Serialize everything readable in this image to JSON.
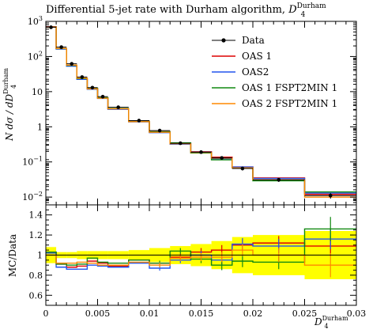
{
  "chart_data": {
    "type": "line",
    "title": "Differential 5-jet rate with Durham algorithm, ",
    "title_symbol": "D",
    "title_sub": "4",
    "title_sup": "Durham",
    "xlabel": "D",
    "xlabel_sub": "4",
    "xlabel_sup": "Durham",
    "ylabel_top": "N dσ / dD",
    "ylabel_top_sub": "4",
    "ylabel_top_sup": "Durham",
    "ylabel_bottom": "MC/Data",
    "xlim": [
      0,
      0.03
    ],
    "ylim_top": [
      0.006,
      1000
    ],
    "yscale_top": "log",
    "ylim_bottom": [
      0.5,
      1.5
    ],
    "x_ticks": [
      0,
      0.005,
      0.01,
      0.015,
      0.02,
      0.025,
      0.03
    ],
    "x_tick_labels": [
      "0",
      "0.005",
      "0.01",
      "0.015",
      "0.02",
      "0.025",
      "0.03"
    ],
    "y_top_ticks": [
      0.01,
      0.1,
      1,
      10,
      100,
      1000
    ],
    "y_top_tick_labels": [
      {
        "base": "10",
        "exp": "−2"
      },
      {
        "base": "10",
        "exp": "−1"
      },
      {
        "base": "1",
        "exp": ""
      },
      {
        "base": "10",
        "exp": ""
      },
      {
        "base": "10",
        "exp": "2"
      },
      {
        "base": "10",
        "exp": "3"
      }
    ],
    "y_bottom_ticks": [
      0.6,
      0.8,
      1.0,
      1.2,
      1.4
    ],
    "y_bottom_tick_labels": [
      "0.6",
      "0.8",
      "1",
      "1.2",
      "1.4"
    ],
    "legend_position": "top-right",
    "bin_edges": [
      0,
      0.001,
      0.002,
      0.003,
      0.004,
      0.005,
      0.006,
      0.008,
      0.01,
      0.012,
      0.014,
      0.016,
      0.018,
      0.02,
      0.025,
      0.03
    ],
    "data": {
      "name": "Data",
      "color": "#000000",
      "values": [
        680,
        185,
        62,
        26,
        13,
        7.2,
        3.6,
        1.5,
        0.78,
        0.34,
        0.19,
        0.13,
        0.065,
        0.031,
        0.011
      ],
      "errors": [
        50,
        10,
        4,
        2,
        1,
        0.5,
        0.25,
        0.1,
        0.06,
        0.03,
        0.02,
        0.015,
        0.008,
        0.004,
        0.002
      ]
    },
    "series": [
      {
        "name": "OAS 1",
        "color": "#dd0000",
        "values": [
          700,
          168,
          55,
          23,
          12.2,
          6.6,
          3.2,
          1.42,
          0.72,
          0.33,
          0.195,
          0.137,
          0.072,
          0.035,
          0.012
        ],
        "ratio": [
          1.03,
          0.91,
          0.88,
          0.89,
          0.94,
          0.92,
          0.89,
          0.95,
          0.92,
          0.98,
          1.03,
          1.05,
          1.1,
          1.12,
          1.09
        ],
        "ratio_err": [
          0.01,
          0.01,
          0.01,
          0.01,
          0.01,
          0.015,
          0.015,
          0.02,
          0.02,
          0.03,
          0.04,
          0.05,
          0.06,
          0.07,
          0.1
        ]
      },
      {
        "name": "OAS2",
        "color": "#2255ee",
        "values": [
          690,
          163,
          53,
          22.4,
          11.7,
          6.4,
          3.15,
          1.38,
          0.68,
          0.32,
          0.19,
          0.123,
          0.072,
          0.034,
          0.013
        ],
        "ratio": [
          1.02,
          0.88,
          0.86,
          0.86,
          0.9,
          0.89,
          0.88,
          0.92,
          0.87,
          0.95,
          1.0,
          0.95,
          1.11,
          1.09,
          1.16
        ],
        "ratio_err": [
          0.01,
          0.01,
          0.01,
          0.01,
          0.015,
          0.015,
          0.015,
          0.02,
          0.025,
          0.03,
          0.04,
          0.05,
          0.06,
          0.07,
          0.1
        ]
      },
      {
        "name": "OAS 1 FSPT2MIN 1",
        "color": "#118811",
        "values": [
          690,
          168,
          56,
          23.6,
          12.6,
          6.7,
          3.3,
          1.43,
          0.72,
          0.35,
          0.18,
          0.115,
          0.068,
          0.029,
          0.014
        ],
        "ratio": [
          1.03,
          0.91,
          0.9,
          0.91,
          0.97,
          0.93,
          0.92,
          0.95,
          0.92,
          1.04,
          0.96,
          0.9,
          0.94,
          0.93,
          1.26
        ],
        "ratio_err": [
          0.01,
          0.01,
          0.01,
          0.01,
          0.015,
          0.015,
          0.015,
          0.02,
          0.025,
          0.03,
          0.04,
          0.05,
          0.06,
          0.07,
          0.12
        ]
      },
      {
        "name": "OAS 2 FSPT2MIN 1",
        "color": "#ff8800",
        "values": [
          680,
          170,
          57,
          24.2,
          12.0,
          6.5,
          3.25,
          1.4,
          0.7,
          0.33,
          0.187,
          0.128,
          0.068,
          0.031,
          0.01
        ],
        "ratio": [
          1.0,
          0.92,
          0.92,
          0.93,
          0.92,
          0.9,
          0.9,
          0.93,
          0.9,
          0.97,
          0.98,
          0.98,
          1.05,
          1.0,
          0.9
        ],
        "ratio_err": [
          0.01,
          0.01,
          0.01,
          0.01,
          0.015,
          0.015,
          0.015,
          0.02,
          0.025,
          0.03,
          0.04,
          0.05,
          0.06,
          0.07,
          0.12
        ]
      }
    ],
    "data_ratio_band": [
      0.08,
      0.03,
      0.03,
      0.04,
      0.04,
      0.04,
      0.04,
      0.05,
      0.07,
      0.09,
      0.11,
      0.14,
      0.18,
      0.2,
      0.24
    ]
  }
}
